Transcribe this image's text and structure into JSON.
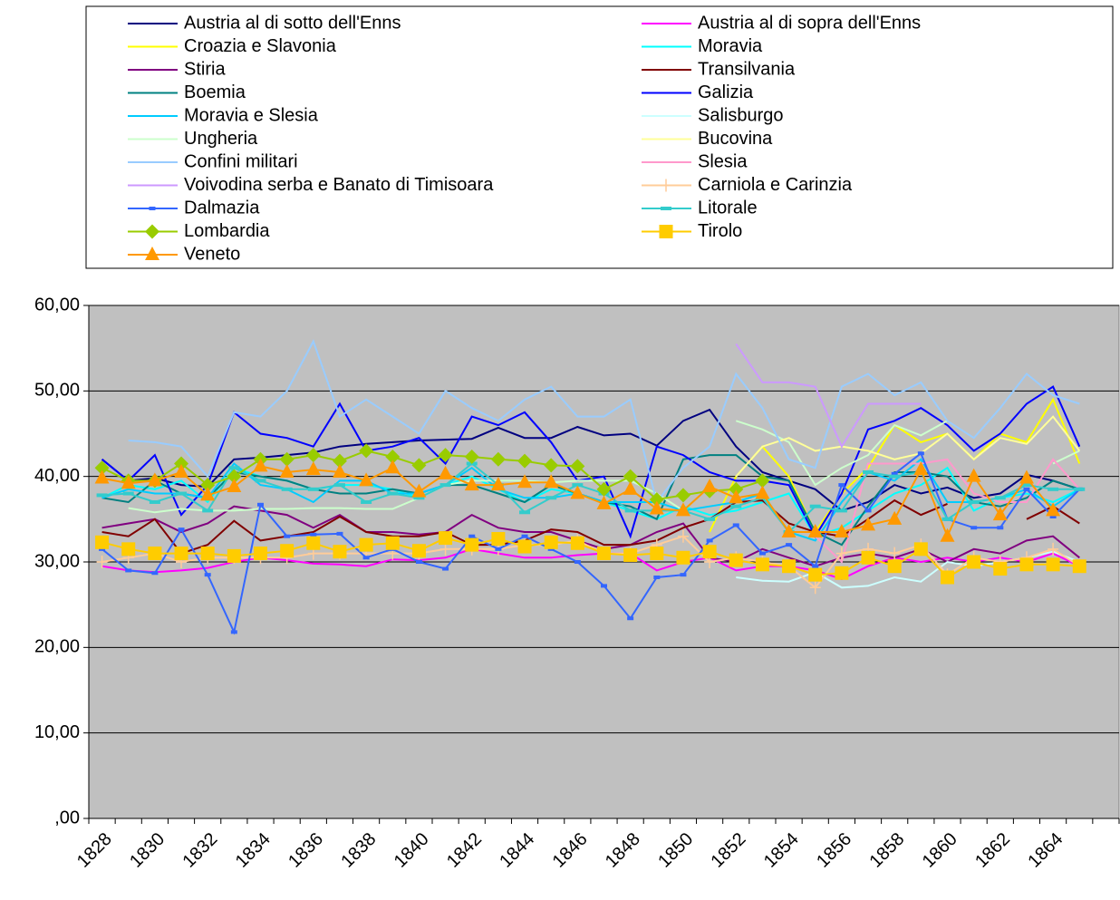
{
  "chart_data": {
    "type": "line",
    "categories": [
      "1828",
      null,
      "1830",
      null,
      "1832",
      null,
      "1834",
      null,
      "1836",
      null,
      "1838",
      null,
      "1840",
      null,
      "1842",
      null,
      "1844",
      null,
      "1846",
      null,
      "1848",
      null,
      "1850",
      null,
      "1852",
      null,
      "1854",
      null,
      "1856",
      null,
      "1858",
      null,
      "1860",
      null,
      "1862",
      null,
      "1864",
      null,
      null
    ],
    "ylim": [
      0,
      60
    ],
    "yticks": [
      {
        "value": 0,
        "label": ",00"
      },
      {
        "value": 10,
        "label": "10,00"
      },
      {
        "value": 20,
        "label": "20,00"
      },
      {
        "value": 30,
        "label": "30,00"
      },
      {
        "value": 40,
        "label": "40,00"
      },
      {
        "value": 50,
        "label": "50,00"
      },
      {
        "value": 60,
        "label": "60,00"
      }
    ],
    "grid": true,
    "legend": "top",
    "series": [
      {
        "name": "Austria al di sotto dell'Enns",
        "color": "#000080",
        "values": [
          42.0,
          39.5,
          39.8,
          39.0,
          38.8,
          42.0,
          42.2,
          42.5,
          42.8,
          43.5,
          43.8,
          44.0,
          44.2,
          44.3,
          44.4,
          45.7,
          44.5,
          44.5,
          45.8,
          44.8,
          45.0,
          43.6,
          46.5,
          47.8,
          43.5,
          40.5,
          39.5,
          38.5,
          36.0,
          37.0,
          39.0,
          38.0,
          38.7,
          37.5,
          38.0,
          40.2,
          39.5,
          38.5,
          null
        ]
      },
      {
        "name": "Austria al di sopra dell'Enns",
        "color": "#FF00FF",
        "values": [
          29.5,
          29.0,
          28.8,
          29.0,
          29.3,
          30.0,
          30.5,
          30.2,
          29.8,
          29.7,
          29.5,
          30.3,
          30.2,
          30.5,
          31.5,
          31.0,
          30.5,
          30.5,
          30.8,
          31.0,
          31.0,
          29.0,
          30.0,
          30.5,
          29.0,
          29.5,
          29.5,
          29.0,
          28.0,
          29.5,
          30.5,
          30.0,
          30.5,
          30.0,
          30.5,
          30.0,
          31.0,
          29.5,
          null
        ]
      },
      {
        "name": "Croazia e Slavonia",
        "color": "#FFFF00",
        "values": [
          null,
          null,
          null,
          null,
          null,
          null,
          null,
          null,
          null,
          null,
          null,
          null,
          null,
          null,
          null,
          null,
          null,
          null,
          null,
          null,
          null,
          null,
          null,
          33.5,
          40.0,
          43.5,
          40.0,
          33.5,
          38.0,
          41.0,
          46.0,
          44.0,
          45.0,
          42.0,
          45.0,
          44.0,
          49.0,
          41.5,
          null
        ]
      },
      {
        "name": "Moravia",
        "color": "#00FFFF",
        "values": [
          37.5,
          39.0,
          38.5,
          39.5,
          37.0,
          41.0,
          40.0,
          39.5,
          38.5,
          39.0,
          39.0,
          38.5,
          37.5,
          39.0,
          40.0,
          38.5,
          37.0,
          38.5,
          38.0,
          37.0,
          36.0,
          35.0,
          36.5,
          35.5,
          36.0,
          37.0,
          38.0,
          33.0,
          34.0,
          36.0,
          38.0,
          39.0,
          41.0,
          36.0,
          37.5,
          38.0,
          37.0,
          38.5,
          null
        ]
      },
      {
        "name": "Stiria",
        "color": "#800080",
        "values": [
          34,
          34.5,
          35,
          33.5,
          34.5,
          36.5,
          36,
          35.5,
          34,
          35.5,
          33.5,
          33.5,
          33.2,
          33.5,
          35.5,
          34,
          33.5,
          33.5,
          32.5,
          31.5,
          32,
          33.5,
          34.5,
          30.5,
          30,
          31.5,
          30.5,
          29.5,
          30.5,
          31,
          30.5,
          31.5,
          30,
          31.5,
          31,
          32.5,
          33,
          30.5,
          null
        ]
      },
      {
        "name": "Transilvania",
        "color": "#800000",
        "values": [
          33.5,
          33,
          35,
          31,
          32,
          34.8,
          32.5,
          33,
          33.5,
          35.3,
          33.5,
          33,
          33,
          33.5,
          32,
          32,
          32.5,
          33.8,
          33.5,
          32,
          32,
          32.5,
          34,
          35,
          37,
          37.2,
          34.5,
          33.5,
          33,
          35,
          37.2,
          35.5,
          36.8,
          null,
          null,
          35,
          36.5,
          34.5,
          null
        ]
      },
      {
        "name": "Boemia",
        "color": "#008080",
        "values": [
          37.5,
          37,
          39.5,
          38,
          37.5,
          40.5,
          40,
          39.5,
          38.5,
          38,
          38,
          38.5,
          38,
          39,
          39,
          38,
          37,
          39,
          38,
          37,
          36.5,
          35,
          42,
          42.5,
          42.5,
          40,
          39.5,
          33.5,
          32,
          36.5,
          40.5,
          40.5,
          40,
          37,
          36.5,
          37.5,
          39.5,
          38.5,
          null
        ]
      },
      {
        "name": "Galizia",
        "color": "#0000FF",
        "values": [
          42,
          39.5,
          42.5,
          35.5,
          39,
          47.5,
          45,
          44.5,
          43.5,
          48.5,
          43,
          43.5,
          44.5,
          41.5,
          47,
          46,
          47.5,
          44,
          39.5,
          40,
          33,
          43.5,
          42.5,
          40.5,
          39.5,
          39.5,
          39,
          33,
          38,
          45.5,
          46.5,
          48,
          46,
          43,
          45,
          48.5,
          50.5,
          43.5,
          null
        ]
      },
      {
        "name": "Moravia e Slesia",
        "color": "#00CCFF",
        "values": [
          37.5,
          38.5,
          38,
          38,
          37.5,
          41.5,
          39,
          38.5,
          37,
          39.5,
          39.5,
          38,
          38,
          39,
          41,
          38.5,
          37.5,
          37.5,
          38,
          37,
          37,
          37,
          36,
          36.5,
          37,
          38,
          33.5,
          32.5,
          37,
          40.5,
          39.5,
          42,
          37,
          37,
          37.5,
          38.5,
          36.5,
          38.5,
          null
        ]
      },
      {
        "name": "Salisburgo",
        "color": "#CCFFFF",
        "values": [
          null,
          null,
          null,
          null,
          null,
          null,
          null,
          null,
          null,
          null,
          null,
          null,
          null,
          null,
          null,
          null,
          null,
          null,
          null,
          null,
          null,
          null,
          null,
          null,
          28.2,
          27.8,
          27.7,
          28.8,
          27.0,
          27.2,
          28.2,
          27.7,
          30.0,
          29.5,
          30.0,
          30.5,
          31.2,
          30.0,
          null
        ]
      },
      {
        "name": "Ungheria",
        "color": "#CCFFCC",
        "values": [
          null,
          36.3,
          35.8,
          36.2,
          36,
          36,
          36.2,
          36.2,
          36.3,
          36.3,
          36.2,
          36.2,
          37.5,
          39,
          39.5,
          39.5,
          39.5,
          39.3,
          39.5,
          39.5,
          39.5,
          38,
          36,
          null,
          46.5,
          45.5,
          44,
          39,
          41,
          42.5,
          46,
          44.8,
          46.5,
          null,
          null,
          null,
          41.5,
          43,
          null
        ]
      },
      {
        "name": "Bucovina",
        "color": "#FFFF99",
        "values": [
          null,
          null,
          null,
          null,
          null,
          null,
          null,
          null,
          null,
          null,
          null,
          null,
          null,
          null,
          null,
          null,
          null,
          null,
          null,
          null,
          null,
          null,
          null,
          null,
          40,
          43.5,
          44.5,
          43,
          43.5,
          43,
          42,
          42.7,
          45,
          42,
          44.5,
          43.8,
          47,
          43,
          null
        ]
      },
      {
        "name": "Confini militari",
        "color": "#99CCFF",
        "values": [
          null,
          44.2,
          44,
          43.5,
          40,
          47.5,
          47,
          50,
          55.8,
          47,
          49,
          47,
          45,
          50,
          48,
          46.5,
          49,
          50.5,
          47,
          47,
          49,
          37,
          41,
          43.5,
          52,
          48,
          42,
          41,
          50.5,
          52,
          49.5,
          51,
          46.5,
          44.5,
          48,
          52,
          49.5,
          48.5,
          null
        ]
      },
      {
        "name": "Slesia",
        "color": "#FF99CC",
        "values": [
          null,
          null,
          null,
          null,
          null,
          null,
          null,
          null,
          null,
          null,
          null,
          null,
          null,
          null,
          null,
          null,
          null,
          null,
          null,
          null,
          null,
          null,
          null,
          null,
          null,
          null,
          null,
          33,
          30,
          41.5,
          41.5,
          41.5,
          42,
          38,
          37,
          37,
          42,
          38.5,
          null
        ]
      },
      {
        "name": "Voivodina serba e Banato di Timisoara",
        "color": "#CC99FF",
        "values": [
          null,
          null,
          null,
          null,
          null,
          null,
          null,
          null,
          null,
          null,
          null,
          null,
          null,
          null,
          null,
          null,
          null,
          null,
          null,
          null,
          null,
          null,
          null,
          null,
          55.5,
          51,
          51,
          50.5,
          43.5,
          48.5,
          48.5,
          48.5,
          null,
          null,
          null,
          null,
          null,
          null,
          null
        ]
      },
      {
        "name": "Carniola e Carinzia",
        "color": "#FFCC99",
        "marker": "plus",
        "values": [
          30,
          30.5,
          31,
          30,
          30.5,
          30.5,
          30.5,
          30.5,
          31,
          31,
          31,
          31,
          31,
          31.5,
          31.5,
          31.5,
          32,
          32,
          32.5,
          31,
          31,
          32,
          33,
          30,
          30.5,
          30,
          29.5,
          27,
          31,
          31.5,
          31,
          32,
          28.5,
          30.5,
          30,
          30.5,
          31.5,
          29.5,
          null
        ]
      },
      {
        "name": "Dalmazia",
        "color": "#3366FF",
        "marker": "smallsquare",
        "values": [
          31.5,
          29,
          28.7,
          33.8,
          28.5,
          21.8,
          36.7,
          33,
          33.2,
          33.3,
          30.5,
          31.5,
          30,
          29.2,
          33,
          31.5,
          33,
          31.5,
          30,
          27.2,
          23.4,
          28.2,
          28.5,
          32.5,
          34.3,
          31,
          32,
          29.5,
          39,
          36,
          40.3,
          42.7,
          35,
          34,
          34,
          38.5,
          35.3,
          38.5,
          null
        ]
      },
      {
        "name": "Litorale",
        "color": "#33CCCC",
        "marker": "dash",
        "values": [
          37.8,
          38,
          37,
          38,
          36,
          41,
          39.5,
          38.5,
          38.5,
          39,
          37,
          38,
          37.5,
          39,
          41.5,
          39,
          35.8,
          37.5,
          39,
          38,
          36,
          36,
          36,
          35,
          36.5,
          37.5,
          33.5,
          36.5,
          36,
          40.5,
          40,
          40.5,
          35,
          37,
          37.5,
          39,
          38.5,
          38.5,
          null
        ]
      },
      {
        "name": "Lombardia",
        "color": "#99CC00",
        "marker": "diamond",
        "values": [
          41,
          39.5,
          39.5,
          41.5,
          39,
          40,
          42,
          42,
          42.5,
          41.8,
          43,
          42.3,
          41.3,
          42.5,
          42.3,
          42,
          41.8,
          41.3,
          41.2,
          38.5,
          40,
          37.3,
          37.8,
          38.3,
          38.5,
          39.5,
          null,
          null,
          null,
          null,
          null,
          null,
          null,
          null,
          null,
          null,
          null,
          null,
          null
        ]
      },
      {
        "name": "Tirolo",
        "color": "#FFCC00",
        "marker": "square",
        "values": [
          32.3,
          31.5,
          31,
          31,
          31,
          30.7,
          31,
          31.3,
          32.2,
          31.2,
          32,
          32.2,
          31.3,
          32.8,
          32,
          32.7,
          31.8,
          32.3,
          32.2,
          31,
          30.8,
          31,
          30.5,
          31.2,
          30.2,
          29.7,
          29.5,
          28.5,
          28.7,
          30.5,
          29.5,
          31.5,
          28.2,
          30,
          29.2,
          29.7,
          29.7,
          29.5,
          null
        ]
      },
      {
        "name": "Veneto",
        "color": "#FF9900",
        "marker": "triangle",
        "values": [
          39.8,
          39.2,
          39.5,
          40.5,
          37.8,
          38.8,
          41.2,
          40.5,
          40.8,
          40.5,
          39.5,
          41,
          38.2,
          40.3,
          39,
          39,
          39.3,
          39.3,
          38,
          36.8,
          38.5,
          36.2,
          36,
          38.8,
          37.5,
          38,
          33.5,
          33.5,
          33.5,
          34.3,
          35,
          40.8,
          33,
          40,
          35.5,
          39.8,
          36,
          null,
          null
        ]
      }
    ]
  }
}
